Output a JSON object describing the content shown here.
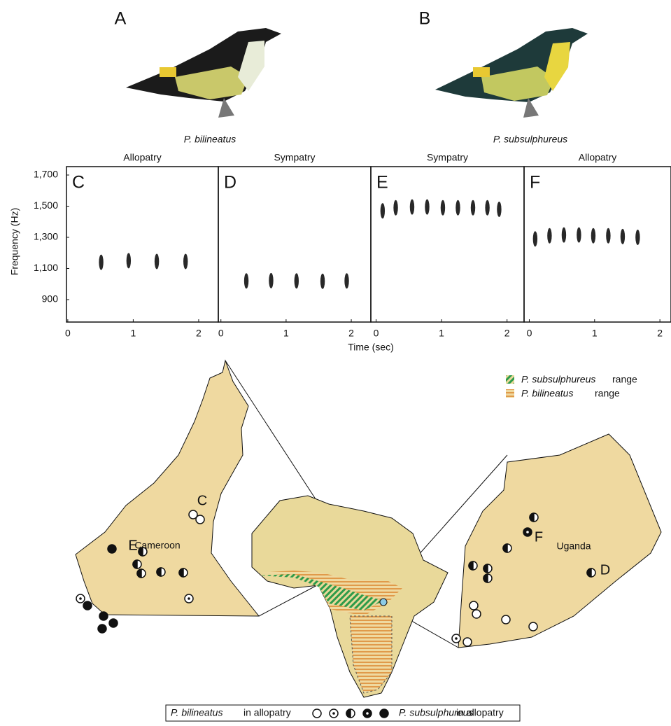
{
  "figure": {
    "panel_labels": [
      "A",
      "B"
    ],
    "species": [
      "P. bilineatus",
      "P. subsulphureus"
    ]
  },
  "shared_axes": {
    "x_label": "Time (sec)",
    "y_label": "Frequency (Hz)"
  },
  "chart_data": [
    {
      "type": "spectrogram",
      "panel": "C",
      "title": "Allopatry",
      "x": [
        0.51,
        0.93,
        1.36,
        1.8
      ],
      "y": [
        1140,
        1150,
        1145,
        1145
      ],
      "color": "#111111",
      "xlim": [
        -0.02,
        2.3
      ],
      "ylim": [
        756,
        1754
      ],
      "xticks": [
        0,
        1,
        2
      ],
      "yticks": [
        900,
        {
          "value": 1100,
          "label": "1,100"
        },
        {
          "value": 1300,
          "label": "1,300"
        },
        {
          "value": 1500,
          "label": "1,500"
        },
        {
          "value": 1700,
          "label": "1,700"
        }
      ]
    },
    {
      "type": "spectrogram",
      "panel": "D",
      "title": "Sympatry",
      "x": [
        0.39,
        0.77,
        1.16,
        1.56,
        1.93
      ],
      "y": [
        1020,
        1022,
        1020,
        1018,
        1020
      ],
      "color": "#111111",
      "xlim": [
        -0.04,
        2.3
      ],
      "ylim": [
        756,
        1754
      ],
      "xticks": [
        0,
        1,
        2
      ]
    },
    {
      "type": "spectrogram",
      "panel": "E",
      "title": "Sympatry",
      "x": [
        0.1,
        0.3,
        0.55,
        0.78,
        1.02,
        1.25,
        1.48,
        1.7,
        1.88
      ],
      "y": [
        1470,
        1490,
        1495,
        1495,
        1490,
        1490,
        1490,
        1490,
        1480
      ],
      "color": "#111111",
      "xlim": [
        -0.08,
        2.26
      ],
      "ylim": [
        756,
        1754
      ],
      "xticks": [
        0,
        1,
        2
      ]
    },
    {
      "type": "spectrogram",
      "panel": "F",
      "title": "Allopatry",
      "x": [
        0.09,
        0.31,
        0.53,
        0.76,
        0.98,
        1.21,
        1.43,
        1.66
      ],
      "y": [
        1290,
        1310,
        1315,
        1315,
        1310,
        1310,
        1305,
        1300
      ],
      "color": "#111111",
      "xlim": [
        -0.08,
        2.17
      ],
      "ylim": [
        756,
        1754
      ],
      "xticks": [
        0,
        1,
        2
      ]
    }
  ],
  "map": {
    "countries": [
      "Cameroon",
      "Uganda"
    ],
    "site_labels": [
      "C",
      "E",
      "F",
      "D"
    ],
    "range_legend": [
      "P. subsulphureus",
      "range",
      "P. bilineatus",
      "range"
    ],
    "symbol_legend": [
      "P. bilineatus",
      "in allopatry",
      "P. subsulphureus",
      "in allopatry"
    ]
  }
}
